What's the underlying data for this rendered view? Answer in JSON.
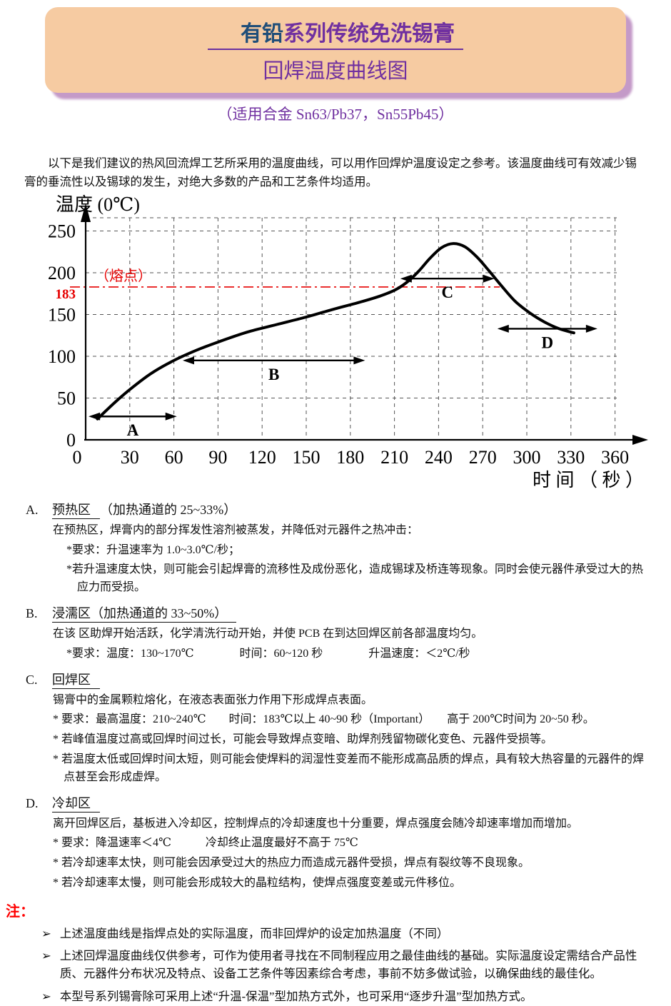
{
  "header": {
    "title_line1_part1": "有铅",
    "title_line1_part2": "系列传统免洗锡膏",
    "title_line2": "回焊温度曲线图",
    "subtitle": "（适用合金 Sn63/Pb37，Sn55Pb45）"
  },
  "intro": "以下是我们建议的热风回流焊工艺所采用的温度曲线，可以用作回焊炉温度设定之参考。该温度曲线可有效减少锡膏的垂流性以及锡球的发生，对绝大多数的产品和工艺条件均适用。",
  "chart_data": {
    "type": "line",
    "title": "回焊温度曲线图",
    "ylabel": "温度 (0℃)",
    "xlabel": "时 间 （ 秒 ）",
    "xlim": [
      0,
      380
    ],
    "ylim": [
      0,
      270
    ],
    "grid": true,
    "x_ticks": [
      0,
      30,
      60,
      90,
      120,
      150,
      180,
      210,
      240,
      270,
      300,
      330,
      360
    ],
    "y_ticks": [
      0,
      50,
      100,
      150,
      200,
      250
    ],
    "melting_point": 183,
    "melting_point_label": "（熔点）",
    "curve": {
      "x": [
        8,
        20,
        32,
        45,
        60,
        75,
        90,
        110,
        130,
        150,
        170,
        185,
        200,
        210,
        218,
        226,
        234,
        242,
        250,
        258,
        266,
        274,
        282,
        292,
        302,
        312,
        322,
        332
      ],
      "y": [
        25,
        45,
        63,
        80,
        95,
        107,
        117,
        129,
        138,
        147,
        157,
        164,
        172,
        179,
        188,
        201,
        217,
        230,
        235,
        231,
        219,
        203,
        186,
        166,
        152,
        141,
        133,
        128
      ]
    },
    "zones": [
      {
        "label": "A",
        "x_range": [
          2,
          62
        ],
        "arrow_y": 28
      },
      {
        "label": "B",
        "x_range": [
          66,
          190
        ],
        "arrow_y": 95
      },
      {
        "label": "C",
        "x_range": [
          214,
          278
        ],
        "arrow_y": 193
      },
      {
        "label": "D",
        "x_range": [
          280,
          348
        ],
        "arrow_y": 133
      }
    ]
  },
  "sections": [
    {
      "label": "A.",
      "title": "预热区",
      "suffix": "（加热通道的 25~33%）",
      "lines": [
        "在预热区，焊膏内的部分挥发性溶剂被蒸发，并降低对元器件之热冲击：",
        "*要求：升温速率为 1.0~3.0℃/秒；",
        "*若升温速度太快，则可能会引起焊膏的流移性及成份恶化，造成锡球及桥连等现象。同时会使元器件承受过大的热应力而受损。"
      ]
    },
    {
      "label": "B.",
      "title": "浸濡区",
      "suffix": "（加热通道的 33~50%）",
      "lines": [
        "在该 区助焊开始活跃，化学清洗行动开始，并使 PCB 在到达回焊区前各部温度均匀。",
        "*要求：温度：130~170℃　　　　时间：60~120 秒　　　　升温速度：＜2℃/秒"
      ]
    },
    {
      "label": "C.",
      "title": "回焊区",
      "suffix": "",
      "lines": [
        "锡膏中的金属颗粒熔化，在液态表面张力作用下形成焊点表面。",
        "* 要求：最高温度：210~240℃　　时间：183℃以上 40~90 秒（Important）　　高于 200℃时间为 20~50 秒。",
        "* 若峰值温度过高或回焊时间过长，可能会导致焊点变暗、助焊剂残留物碳化变色、元器件受损等。",
        "* 若温度太低或回焊时间太短，则可能会使焊料的润湿性变差而不能形成高品质的焊点，具有较大热容量的元器件的焊点甚至会形成虚焊。"
      ]
    },
    {
      "label": "D.",
      "title": "冷却区",
      "suffix": "",
      "lines": [
        "离开回焊区后，基板进入冷却区，控制焊点的冷却速度也十分重要，焊点强度会随冷却速率增加而增加。",
        "* 要求：降温速率＜4℃　　　冷却终止温度最好不高于 75℃",
        "* 若冷却速率太快，则可能会因承受过大的热应力而造成元器件受损，焊点有裂纹等不良现象。",
        "* 若冷却速率太慢，则可能会形成较大的晶粒结构，使焊点强度变差或元件移位。"
      ]
    }
  ],
  "notes": {
    "label": "注：",
    "bullet": "➢",
    "items": [
      "上述温度曲线是指焊点处的实际温度，而非回焊炉的设定加热温度（不同）",
      "上述回焊温度曲线仅供参考，可作为使用者寻找在不同制程应用之最佳曲线的基础。实际温度设定需结合产品性质、元器件分布状况及特点、设备工艺条件等因素综合考虑，事前不妨多做试验，以确保曲线的最佳化。",
      "本型号系列锡膏除可采用上述“升温-保温”型加热方式外，也可采用“逐步升温”型加热方式。"
    ]
  }
}
